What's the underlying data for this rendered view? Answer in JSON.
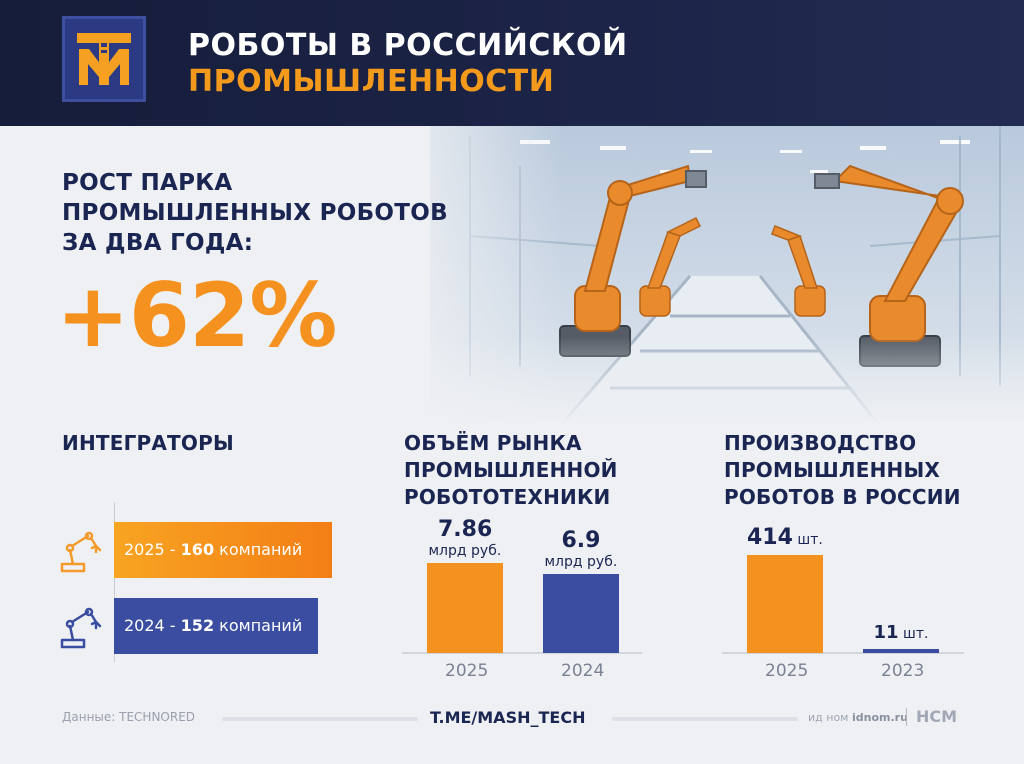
{
  "header": {
    "title_line1": "РОБОТЫ В РОССИЙСКОЙ",
    "title_line2": "ПРОМЫШЛЕННОСТИ",
    "logo_letters": "ТМ"
  },
  "hero": {
    "line1": "РОСТ ПАРКА",
    "line2": "ПРОМЫШЛЕННЫХ РОБОТОВ",
    "line3": "ЗА ДВА ГОДА:",
    "value": "+62%"
  },
  "integrators": {
    "title": "ИНТЕГРАТОРЫ",
    "rows": [
      {
        "year": "2025",
        "sep": " - ",
        "count": "160",
        "unit": " компаний"
      },
      {
        "year": "2024",
        "sep": " - ",
        "count": "152",
        "unit": " компаний"
      }
    ]
  },
  "market": {
    "title_line1": "ОБЪЁМ РЫНКА",
    "title_line2": "ПРОМЫШЛЕННОЙ",
    "title_line3": "РОБОТОТЕХНИКИ"
  },
  "production": {
    "title_line1": "ПРОИЗВОДСТВО",
    "title_line2": "ПРОМЫШЛЕННЫХ",
    "title_line3": "РОБОТОВ В РОССИИ"
  },
  "chart_data": [
    {
      "type": "bar",
      "title": "ИНТЕГРАТОРЫ",
      "orientation": "horizontal",
      "categories": [
        "2025",
        "2024"
      ],
      "values": [
        160,
        152
      ],
      "unit": "компаний"
    },
    {
      "type": "bar",
      "title": "ОБЪЁМ РЫНКА ПРОМЫШЛЕННОЙ РОБОТОТЕХНИКИ",
      "categories": [
        "2025",
        "2024"
      ],
      "values": [
        7.86,
        6.9
      ],
      "value_labels": [
        "7.86",
        "6.9"
      ],
      "unit": "млрд руб."
    },
    {
      "type": "bar",
      "title": "ПРОИЗВОДСТВО ПРОМЫШЛЕННЫХ РОБОТОВ В РОССИИ",
      "categories": [
        "2025",
        "2023"
      ],
      "values": [
        414,
        11
      ],
      "value_labels": [
        "414",
        "11"
      ],
      "unit": "шт."
    }
  ],
  "colors": {
    "orange": "#f5911e",
    "blue": "#3a4da0",
    "navy": "#1a2552",
    "header_bg": "#1c2448"
  },
  "icons": [
    "logo-tm-icon",
    "robot-arm-icon"
  ],
  "footer": {
    "source": "Данные: TECHNORED",
    "channel": "T.ME/MASH_TECH",
    "id_prefix": "ид ном ",
    "id_site": "idnom.ru",
    "brand": "НСМ"
  }
}
